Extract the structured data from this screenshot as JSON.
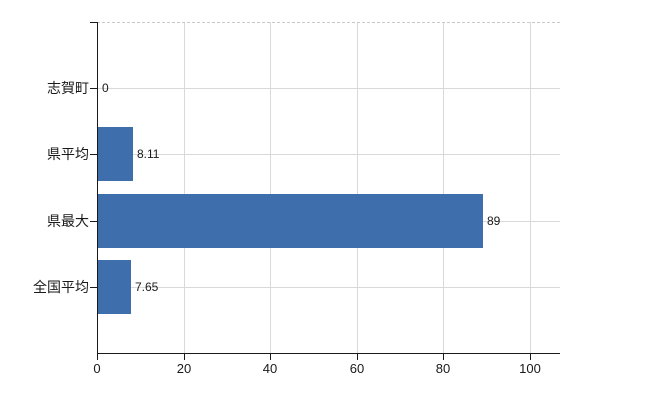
{
  "chart_data": {
    "type": "bar",
    "orientation": "horizontal",
    "categories": [
      "志賀町",
      "県平均",
      "県最大",
      "全国平均"
    ],
    "values": [
      0,
      8.11,
      89,
      7.65
    ],
    "value_labels": [
      "0",
      "8.11",
      "89",
      "7.65"
    ],
    "x_tick_values": [
      0,
      20,
      40,
      60,
      80,
      100
    ],
    "x_tick_labels": [
      "0",
      "20",
      "40",
      "60",
      "80",
      "100"
    ],
    "xlim": [
      0,
      107
    ],
    "grid": true,
    "legend": false,
    "colors": {
      "bar": "#3e6eac",
      "grid": "#d9d9d9",
      "plot_top_border": "#c9c9c9",
      "axis": "#1a1a1a",
      "text": "#1a1a1a",
      "background": "#ffffff"
    }
  }
}
